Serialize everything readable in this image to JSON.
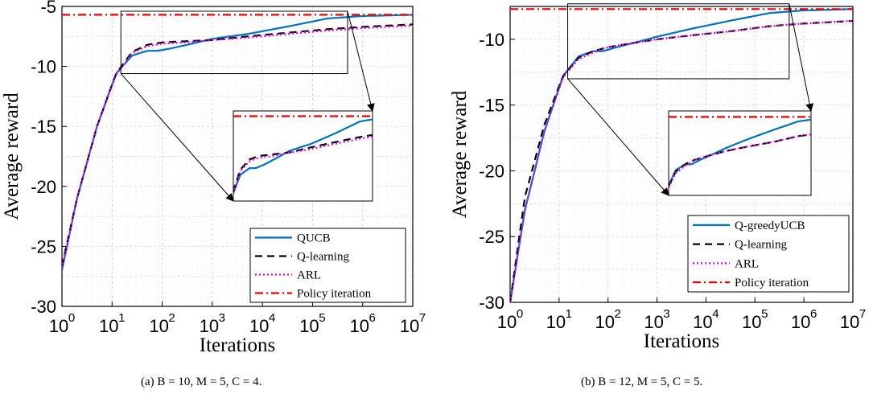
{
  "chart_data": [
    {
      "type": "line",
      "caption": "(a) B = 10, M = 5, C = 4.",
      "xlabel": "Iterations",
      "ylabel": "Average reward",
      "xscale": "log",
      "xlim": [
        1,
        10000000
      ],
      "ylim": [
        -30,
        -5
      ],
      "xticks": [
        {
          "base": "10",
          "exp": "0"
        },
        {
          "base": "10",
          "exp": "1"
        },
        {
          "base": "10",
          "exp": "2"
        },
        {
          "base": "10",
          "exp": "3"
        },
        {
          "base": "10",
          "exp": "4"
        },
        {
          "base": "10",
          "exp": "5"
        },
        {
          "base": "10",
          "exp": "6"
        },
        {
          "base": "10",
          "exp": "7"
        }
      ],
      "yticks": [
        "-30",
        "-25",
        "-20",
        "-15",
        "-10",
        "-5"
      ],
      "grid": true,
      "legend_position": "bottom-right",
      "inset_zoom": true,
      "series": [
        {
          "name": "QUCB",
          "color": "#0072BD",
          "style": "solid",
          "x": [
            1,
            2,
            5,
            12,
            25,
            50,
            80,
            150,
            400,
            1000,
            5000,
            30000,
            200000,
            1000000,
            10000000
          ],
          "y": [
            -27,
            -21,
            -15,
            -10.6,
            -9.1,
            -8.7,
            -8.7,
            -8.5,
            -8.1,
            -7.7,
            -7.3,
            -6.7,
            -6.0,
            -5.8,
            -5.7
          ]
        },
        {
          "name": "Q-learning",
          "color": "#000000",
          "style": "dashed",
          "x": [
            1,
            2,
            5,
            12,
            25,
            50,
            100,
            300,
            1000,
            5000,
            30000,
            200000,
            1000000,
            10000000
          ],
          "y": [
            -26.6,
            -21,
            -15,
            -10.6,
            -8.8,
            -8.2,
            -8.0,
            -7.9,
            -7.8,
            -7.5,
            -7.2,
            -6.9,
            -6.7,
            -6.5
          ]
        },
        {
          "name": "ARL",
          "color": "#E600E6",
          "style": "dotted",
          "x": [
            1,
            2,
            5,
            12,
            25,
            50,
            100,
            300,
            1000,
            5000,
            30000,
            200000,
            1000000,
            10000000
          ],
          "y": [
            -26.8,
            -21,
            -15,
            -10.7,
            -8.9,
            -8.3,
            -8.1,
            -8.0,
            -7.8,
            -7.6,
            -7.3,
            -7.0,
            -6.8,
            -6.6
          ]
        },
        {
          "name": "Policy iteration",
          "color": "#E60000",
          "style": "dashdot",
          "x": [
            1,
            10000000
          ],
          "y": [
            -5.7,
            -5.7
          ]
        }
      ]
    },
    {
      "type": "line",
      "caption": "(b) B = 12, M = 5, C = 5.",
      "xlabel": "Iterations",
      "ylabel": "Average reward",
      "xscale": "log",
      "xlim": [
        1,
        10000000
      ],
      "ylim": [
        -30,
        -7.5
      ],
      "xticks": [
        {
          "base": "10",
          "exp": "0"
        },
        {
          "base": "10",
          "exp": "1"
        },
        {
          "base": "10",
          "exp": "2"
        },
        {
          "base": "10",
          "exp": "3"
        },
        {
          "base": "10",
          "exp": "4"
        },
        {
          "base": "10",
          "exp": "5"
        },
        {
          "base": "10",
          "exp": "6"
        },
        {
          "base": "10",
          "exp": "7"
        }
      ],
      "yticks": [
        "-30",
        "-25",
        "-20",
        "-15",
        "-10"
      ],
      "grid": true,
      "legend_position": "bottom-right",
      "inset_zoom": true,
      "series": [
        {
          "name": "Q-greedyUCB",
          "color": "#0072BD",
          "style": "solid",
          "x": [
            1,
            2,
            5,
            12,
            25,
            50,
            80,
            150,
            400,
            1000,
            5000,
            30000,
            200000,
            1000000,
            10000000
          ],
          "y": [
            -30,
            -23,
            -17,
            -12.8,
            -11.3,
            -10.9,
            -10.9,
            -10.6,
            -10.2,
            -9.8,
            -9.2,
            -8.6,
            -8.0,
            -7.8,
            -7.7
          ]
        },
        {
          "name": "Q-learning",
          "color": "#000000",
          "style": "dashed",
          "x": [
            1,
            2,
            5,
            12,
            25,
            50,
            100,
            300,
            1000,
            5000,
            30000,
            200000,
            1000000,
            10000000
          ],
          "y": [
            -30,
            -22,
            -16.5,
            -12.8,
            -11.4,
            -10.9,
            -10.6,
            -10.3,
            -10.0,
            -9.7,
            -9.4,
            -9.0,
            -8.8,
            -8.6
          ]
        },
        {
          "name": "ARL",
          "color": "#E600E6",
          "style": "dotted",
          "x": [
            1,
            2,
            5,
            12,
            25,
            50,
            100,
            300,
            1000,
            5000,
            30000,
            200000,
            1000000,
            10000000
          ],
          "y": [
            -30,
            -23,
            -17,
            -12.9,
            -11.5,
            -11.0,
            -10.6,
            -10.3,
            -10.0,
            -9.7,
            -9.4,
            -9.0,
            -8.8,
            -8.6
          ]
        },
        {
          "name": "Policy iteration",
          "color": "#E60000",
          "style": "dashdot",
          "x": [
            1,
            10000000
          ],
          "y": [
            -7.7,
            -7.7
          ]
        }
      ]
    }
  ]
}
